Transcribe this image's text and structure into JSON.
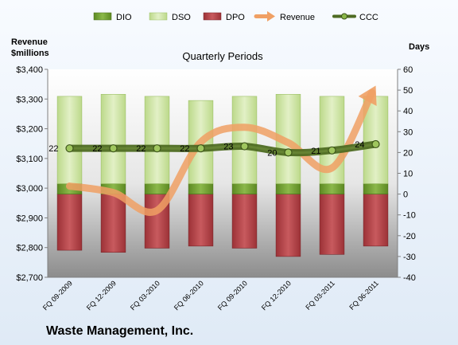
{
  "chart_data": {
    "type": "bar",
    "title": "Quarterly Periods",
    "company": "Waste Management, Inc.",
    "left_axis": {
      "title_line1": "Revenue",
      "title_line2": "$millions",
      "range": [
        2700,
        3400
      ],
      "ticks": [
        "$2,700",
        "$2,800",
        "$2,900",
        "$3,000",
        "$3,100",
        "$3,200",
        "$3,300",
        "$3,400"
      ],
      "tick_values": [
        2700,
        2800,
        2900,
        3000,
        3100,
        3200,
        3300,
        3400
      ]
    },
    "right_axis": {
      "title": "Days",
      "range": [
        -40,
        60
      ],
      "ticks": [
        "-40",
        "-30",
        "-20",
        "-10",
        "0",
        "10",
        "20",
        "30",
        "40",
        "50",
        "60"
      ],
      "tick_values": [
        -40,
        -30,
        -20,
        -10,
        0,
        10,
        20,
        30,
        40,
        50,
        60
      ]
    },
    "categories": [
      "FQ 09-2009",
      "FQ 12-2009",
      "FQ 03-2010",
      "FQ 06-2010",
      "FQ 09-2010",
      "FQ 12-2010",
      "FQ 03-2011",
      "FQ 06-2011"
    ],
    "legend": [
      "DIO",
      "DSO",
      "DPO",
      "Revenue",
      "CCC"
    ],
    "series": [
      {
        "name": "DIO",
        "axis": "right",
        "values": [
          5,
          5,
          5,
          5,
          5,
          5,
          5,
          5
        ]
      },
      {
        "name": "DSO",
        "axis": "right",
        "values": [
          42,
          43,
          42,
          40,
          42,
          43,
          42,
          42
        ]
      },
      {
        "name": "DPO",
        "axis": "right",
        "values": [
          -27,
          -28,
          -26,
          -25,
          -26,
          -30,
          -29,
          -25
        ]
      },
      {
        "name": "Revenue",
        "axis": "left",
        "values": [
          3007,
          2985,
          2925,
          3155,
          3205,
          3153,
          3068,
          3345
        ]
      },
      {
        "name": "CCC",
        "axis": "right",
        "values": [
          22,
          22,
          22,
          22,
          23,
          20,
          21,
          24
        ],
        "labels": [
          "22",
          "22",
          "22",
          "22",
          "23",
          "20",
          "21",
          "24"
        ]
      }
    ],
    "colors": {
      "DIO": "#6e9a2e",
      "DSO": "#cfe6a6",
      "DPO": "#b8454a",
      "Revenue": "#f0a064",
      "CCC": "#4e6b22"
    },
    "legend_position": "top",
    "grid": false
  }
}
